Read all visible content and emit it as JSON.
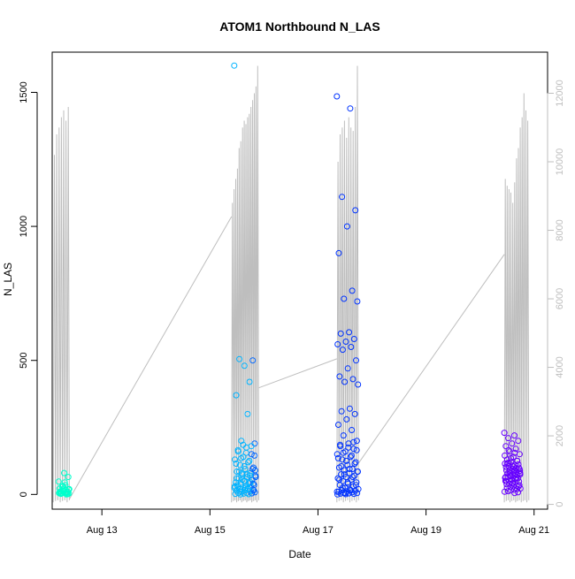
{
  "chart_data": {
    "type": "scatter",
    "title": "ATOM1 Northbound N_LAS",
    "xlabel": "Date",
    "ylabel": "N_LAS",
    "x_ticks": [
      "Aug 13",
      "Aug 15",
      "Aug 17",
      "Aug 19",
      "Aug 21"
    ],
    "y_ticks": [
      "0",
      "500",
      "1000",
      "1500"
    ],
    "y2_ticks": [
      "0",
      "2000",
      "4000",
      "6000",
      "8000",
      "10000",
      "12000"
    ],
    "xlim_days": [
      12.08,
      21.25
    ],
    "ylim": [
      -55,
      1650
    ],
    "y2lim": [
      -140,
      13200
    ],
    "grid": false,
    "colors": {
      "axis": "#000000",
      "secondary_line": "#bebebe",
      "palette": [
        "#00ffcc",
        "#00e5ff",
        "#00b3ff",
        "#0066ff",
        "#0033ff",
        "#3300ff",
        "#6600ff"
      ]
    },
    "series": [
      {
        "axis": "left",
        "style": "points",
        "clusters": [
          {
            "from": 12.2,
            "to": 12.4,
            "values": [
              48,
              35,
              5,
              10,
              22,
              8,
              0,
              15,
              3,
              45,
              12,
              2,
              30,
              5,
              18,
              4,
              65,
              80,
              3,
              9,
              12,
              20,
              6,
              2,
              1,
              14,
              22,
              5,
              30,
              18
            ]
          },
          {
            "from": 15.45,
            "to": 15.85,
            "values": [
              1600,
              300,
              505,
              500,
              480,
              370,
              420,
              200,
              190,
              175,
              160,
              150,
              140,
              130,
              120,
              110,
              100,
              95,
              85,
              80,
              75,
              70,
              65,
              60,
              55,
              50,
              45,
              42,
              38,
              35,
              32,
              30,
              28,
              26,
              24,
              22,
              20,
              18,
              16,
              14,
              12,
              10,
              8,
              6,
              5,
              4,
              3,
              2,
              1,
              0,
              15,
              25,
              35,
              45,
              55,
              65,
              75,
              85,
              95,
              105,
              115,
              125,
              135,
              145,
              155,
              165,
              180,
              185,
              30,
              20,
              10,
              40,
              50,
              60,
              70,
              80,
              90
            ]
          },
          {
            "from": 17.35,
            "to": 17.75,
            "values": [
              1485,
              1440,
              1110,
              1060,
              1000,
              900,
              760,
              730,
              720,
              605,
              600,
              580,
              570,
              560,
              550,
              540,
              500,
              470,
              440,
              430,
              420,
              410,
              320,
              310,
              300,
              280,
              260,
              240,
              220,
              200,
              190,
              180,
              170,
              160,
              150,
              140,
              130,
              120,
              110,
              100,
              95,
              90,
              85,
              80,
              75,
              70,
              65,
              60,
              55,
              50,
              45,
              40,
              35,
              30,
              25,
              20,
              18,
              16,
              14,
              12,
              10,
              8,
              6,
              5,
              4,
              3,
              2,
              1,
              0,
              15,
              25,
              35,
              45,
              55,
              65,
              75,
              85,
              95,
              105,
              115,
              125,
              135,
              145,
              155,
              165,
              175,
              185,
              195,
              5,
              10
            ]
          },
          {
            "from": 20.45,
            "to": 20.75,
            "values": [
              230,
              220,
              210,
              200,
              190,
              180,
              170,
              160,
              150,
              140,
              130,
              125,
              120,
              115,
              110,
              105,
              100,
              95,
              90,
              85,
              80,
              75,
              70,
              65,
              60,
              55,
              50,
              45,
              40,
              35,
              30,
              25,
              20,
              15,
              10,
              5,
              118,
              112,
              108,
              102,
              98,
              92,
              88,
              82,
              78,
              72,
              68,
              62,
              58,
              52,
              48,
              42,
              38,
              32,
              28,
              22,
              18,
              12,
              8,
              55,
              65,
              75,
              85,
              95,
              105,
              115,
              125,
              135,
              145,
              155,
              165,
              30,
              40,
              50,
              60,
              70,
              80,
              90
            ]
          }
        ]
      },
      {
        "axis": "right",
        "style": "line",
        "clusters": [
          {
            "from": 12.1,
            "to": 12.4,
            "peaks": [
              10200,
              10800,
              11000,
              11300,
              11500,
              11200,
              11600
            ]
          },
          {
            "from": 15.4,
            "to": 15.9,
            "peaks": [
              8800,
              9200,
              9500,
              9800,
              10400,
              10600,
              11000,
              11200,
              11100,
              11300,
              11400,
              11600,
              11800,
              12000,
              12200,
              12800
            ]
          },
          {
            "from": 17.35,
            "to": 17.75,
            "peaks": [
              10000,
              10800,
              11000,
              11200,
              10700,
              11300,
              11000,
              10900,
              11600,
              12800
            ]
          },
          {
            "from": 20.45,
            "to": 20.9,
            "peaks": [
              9500,
              9300,
              9200,
              9100,
              8800,
              9400,
              10100,
              10400,
              11000,
              11300,
              12000,
              11500,
              11200
            ]
          }
        ],
        "connectors": [
          {
            "x": [
              12.4,
              15.4
            ],
            "y": [
              160,
              8400
            ]
          },
          {
            "x": [
              15.9,
              17.35
            ],
            "y": [
              3400,
              4250
            ]
          },
          {
            "x": [
              17.75,
              20.45
            ],
            "y": [
              1200,
              7300
            ]
          }
        ]
      }
    ]
  }
}
